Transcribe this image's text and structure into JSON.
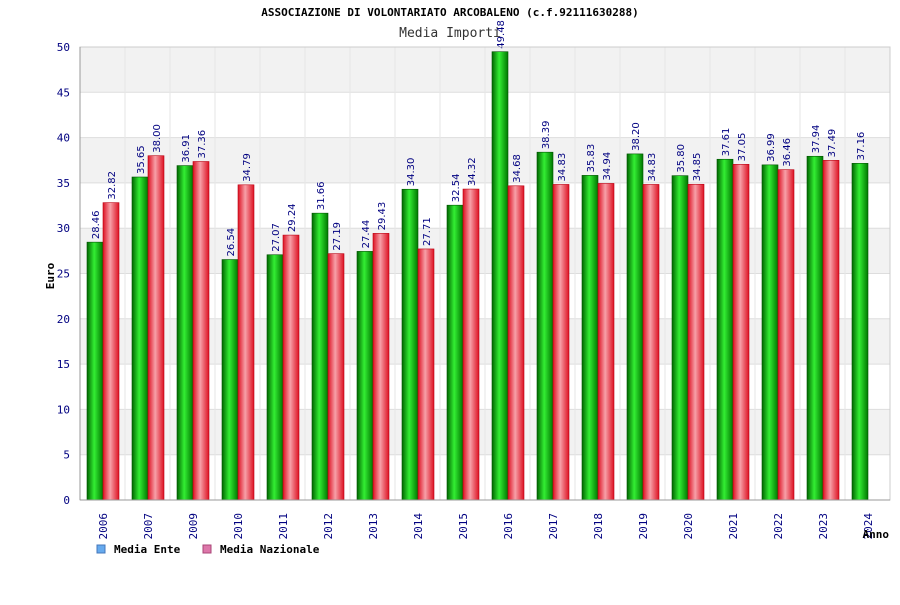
{
  "chart_data": {
    "type": "bar",
    "title": "ASSOCIAZIONE DI VOLONTARIATO ARCOBALENO (c.f.92111630288)",
    "subtitle": "Media Importi",
    "ylabel": "Euro",
    "xlabel": "Anno",
    "ylim": [
      0,
      50
    ],
    "yticks": [
      "0",
      "5",
      "10",
      "15",
      "20",
      "25",
      "30",
      "35",
      "40",
      "45",
      "50"
    ],
    "categories": [
      "2006",
      "2007",
      "2009",
      "2010",
      "2011",
      "2012",
      "2013",
      "2014",
      "2015",
      "2016",
      "2017",
      "2018",
      "2019",
      "2020",
      "2021",
      "2022",
      "2023",
      "2024"
    ],
    "series": [
      {
        "name": "Media Ente",
        "color": "#00aa00",
        "values": [
          28.46,
          35.65,
          36.91,
          26.54,
          27.07,
          31.66,
          27.44,
          34.3,
          32.54,
          49.48,
          38.39,
          35.83,
          38.2,
          35.8,
          37.61,
          36.99,
          37.94,
          37.16
        ],
        "labels": [
          "28.46",
          "35.65",
          "36.91",
          "26.54",
          "27.07",
          "31.66",
          "27.44",
          "34.30",
          "32.54",
          "49.48",
          "38.39",
          "35.83",
          "38.20",
          "35.80",
          "37.61",
          "36.99",
          "37.94",
          "37.16"
        ]
      },
      {
        "name": "Media Nazionale",
        "color": "#ee2233",
        "values": [
          32.82,
          38.0,
          37.36,
          34.79,
          29.24,
          27.19,
          29.43,
          27.71,
          34.32,
          34.68,
          34.83,
          34.94,
          34.83,
          34.85,
          37.05,
          36.46,
          37.49,
          null
        ],
        "labels": [
          "32.82",
          "38.00",
          "37.36",
          "34.79",
          "29.24",
          "27.19",
          "29.43",
          "27.71",
          "34.32",
          "34.68",
          "34.83",
          "34.94",
          "34.83",
          "34.85",
          "37.05",
          "36.46",
          "37.49",
          null
        ]
      }
    ],
    "legend": [
      {
        "label": "Media Ente",
        "color": "#66aaee"
      },
      {
        "label": "Media Nazionale",
        "color": "#dd77aa"
      }
    ],
    "grid": true,
    "legend_position": "bottom-left"
  }
}
